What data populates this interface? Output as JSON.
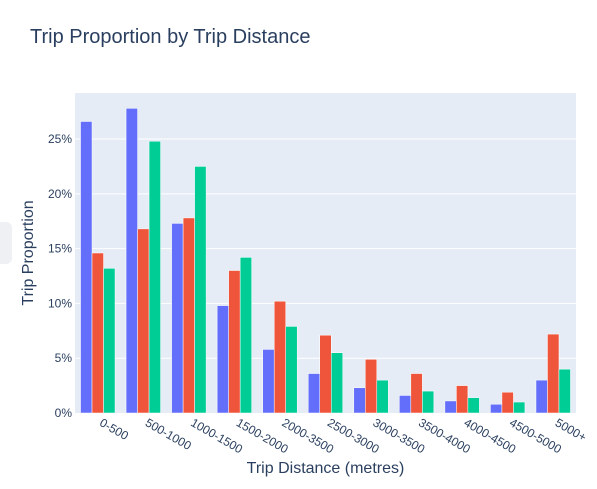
{
  "chart_data": {
    "type": "bar",
    "title": "Trip Proportion by Trip Distance",
    "xlabel": "Trip Distance (metres)",
    "ylabel": "Trip Proportion",
    "categories": [
      "0-500",
      "500-1000",
      "1000-1500",
      "1500-2000",
      "2000-3500",
      "2500-3000",
      "3000-3500",
      "3500-4000",
      "4000-4500",
      "4500-5000",
      "5000+"
    ],
    "yticks": [
      0,
      5,
      10,
      15,
      20,
      25
    ],
    "ytick_labels": [
      "0%",
      "5%",
      "10%",
      "15%",
      "20%",
      "25%"
    ],
    "ylim": [
      0,
      29.2
    ],
    "series": [
      {
        "color": "#636efa",
        "values": [
          26.6,
          27.8,
          17.3,
          9.8,
          5.8,
          3.6,
          2.3,
          1.6,
          1.1,
          0.8,
          3.0
        ]
      },
      {
        "color": "#ef553b",
        "values": [
          14.6,
          16.8,
          17.8,
          13.0,
          10.2,
          7.1,
          4.9,
          3.6,
          2.5,
          1.9,
          7.2
        ]
      },
      {
        "color": "#00cc96",
        "values": [
          13.2,
          24.8,
          22.5,
          14.2,
          7.9,
          5.5,
          3.0,
          2.0,
          1.4,
          1.0,
          4.0
        ]
      }
    ],
    "grid": true,
    "colors": {
      "plot_background": "#e5ecf6",
      "gridline": "#ffffff",
      "text": "#2a3f5f"
    }
  }
}
